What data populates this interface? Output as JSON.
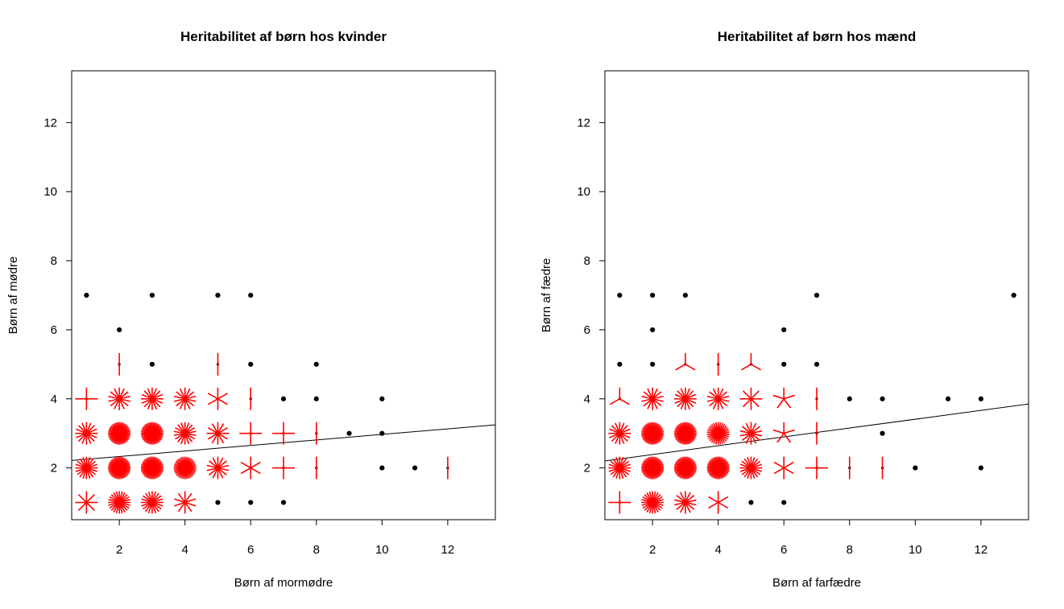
{
  "colors": {
    "point": "#000000",
    "sunflower": "#ff0000",
    "line": "#000000"
  },
  "chart_data": [
    {
      "type": "scatter",
      "subtype": "sunflower",
      "title": "Heritabilitet af børn hos kvinder",
      "xlabel": "Børn af  mormødre",
      "ylabel": "Børn af mødre",
      "xlim": [
        0.55,
        13.45
      ],
      "ylim": [
        0.5,
        13.5
      ],
      "xticks": [
        2,
        4,
        6,
        8,
        10,
        12
      ],
      "yticks": [
        2,
        4,
        6,
        8,
        10,
        12
      ],
      "xtick_labels": [
        "2",
        "4",
        "6",
        "8",
        "10",
        "12"
      ],
      "ytick_labels": [
        "2",
        "4",
        "6",
        "8",
        "10",
        "12"
      ],
      "regression_line": {
        "intercept": 2.17,
        "slope": 0.08
      },
      "points": [
        {
          "x": 1,
          "y": 7,
          "n": 1
        },
        {
          "x": 3,
          "y": 7,
          "n": 1
        },
        {
          "x": 5,
          "y": 7,
          "n": 1
        },
        {
          "x": 6,
          "y": 7,
          "n": 1
        },
        {
          "x": 2,
          "y": 6,
          "n": 1
        },
        {
          "x": 2,
          "y": 5,
          "n": 2
        },
        {
          "x": 3,
          "y": 5,
          "n": 1
        },
        {
          "x": 5,
          "y": 5,
          "n": 2
        },
        {
          "x": 6,
          "y": 5,
          "n": 1
        },
        {
          "x": 8,
          "y": 5,
          "n": 1
        },
        {
          "x": 1,
          "y": 4,
          "n": 4
        },
        {
          "x": 2,
          "y": 4,
          "n": 14
        },
        {
          "x": 3,
          "y": 4,
          "n": 16
        },
        {
          "x": 4,
          "y": 4,
          "n": 14
        },
        {
          "x": 5,
          "y": 4,
          "n": 6
        },
        {
          "x": 6,
          "y": 4,
          "n": 2
        },
        {
          "x": 7,
          "y": 4,
          "n": 1
        },
        {
          "x": 8,
          "y": 4,
          "n": 1
        },
        {
          "x": 10,
          "y": 4,
          "n": 1
        },
        {
          "x": 1,
          "y": 3,
          "n": 16
        },
        {
          "x": 2,
          "y": 3,
          "n": 40
        },
        {
          "x": 3,
          "y": 3,
          "n": 40
        },
        {
          "x": 4,
          "y": 3,
          "n": 18
        },
        {
          "x": 5,
          "y": 3,
          "n": 12
        },
        {
          "x": 6,
          "y": 3,
          "n": 4
        },
        {
          "x": 7,
          "y": 3,
          "n": 4
        },
        {
          "x": 8,
          "y": 3,
          "n": 2
        },
        {
          "x": 9,
          "y": 3,
          "n": 1
        },
        {
          "x": 10,
          "y": 3,
          "n": 1
        },
        {
          "x": 1,
          "y": 2,
          "n": 20
        },
        {
          "x": 2,
          "y": 2,
          "n": 40
        },
        {
          "x": 3,
          "y": 2,
          "n": 40
        },
        {
          "x": 4,
          "y": 2,
          "n": 36
        },
        {
          "x": 5,
          "y": 2,
          "n": 14
        },
        {
          "x": 6,
          "y": 2,
          "n": 6
        },
        {
          "x": 7,
          "y": 2,
          "n": 4
        },
        {
          "x": 8,
          "y": 2,
          "n": 2
        },
        {
          "x": 10,
          "y": 2,
          "n": 1
        },
        {
          "x": 11,
          "y": 2,
          "n": 1
        },
        {
          "x": 12,
          "y": 2,
          "n": 2
        },
        {
          "x": 1,
          "y": 1,
          "n": 8
        },
        {
          "x": 2,
          "y": 1,
          "n": 24
        },
        {
          "x": 3,
          "y": 1,
          "n": 20
        },
        {
          "x": 4,
          "y": 1,
          "n": 10
        },
        {
          "x": 5,
          "y": 1,
          "n": 1
        },
        {
          "x": 6,
          "y": 1,
          "n": 1
        },
        {
          "x": 7,
          "y": 1,
          "n": 1
        }
      ]
    },
    {
      "type": "scatter",
      "subtype": "sunflower",
      "title": "Heritabilitet af børn hos mænd",
      "xlabel": "Børn af  farfædre",
      "ylabel": "Børn af fædre",
      "xlim": [
        0.55,
        13.45
      ],
      "ylim": [
        0.5,
        13.5
      ],
      "xticks": [
        2,
        4,
        6,
        8,
        10,
        12
      ],
      "yticks": [
        2,
        4,
        6,
        8,
        10,
        12
      ],
      "xtick_labels": [
        "2",
        "4",
        "6",
        "8",
        "10",
        "12"
      ],
      "ytick_labels": [
        "2",
        "4",
        "6",
        "8",
        "10",
        "12"
      ],
      "regression_line": {
        "intercept": 2.13,
        "slope": 0.128
      },
      "points": [
        {
          "x": 1,
          "y": 7,
          "n": 1
        },
        {
          "x": 2,
          "y": 7,
          "n": 1
        },
        {
          "x": 3,
          "y": 7,
          "n": 1
        },
        {
          "x": 7,
          "y": 7,
          "n": 1
        },
        {
          "x": 13,
          "y": 7,
          "n": 1
        },
        {
          "x": 2,
          "y": 6,
          "n": 1
        },
        {
          "x": 6,
          "y": 6,
          "n": 1
        },
        {
          "x": 1,
          "y": 5,
          "n": 1
        },
        {
          "x": 2,
          "y": 5,
          "n": 1
        },
        {
          "x": 3,
          "y": 5,
          "n": 3
        },
        {
          "x": 4,
          "y": 5,
          "n": 2
        },
        {
          "x": 5,
          "y": 5,
          "n": 3
        },
        {
          "x": 6,
          "y": 5,
          "n": 1
        },
        {
          "x": 7,
          "y": 5,
          "n": 1
        },
        {
          "x": 1,
          "y": 4,
          "n": 3
        },
        {
          "x": 2,
          "y": 4,
          "n": 14
        },
        {
          "x": 3,
          "y": 4,
          "n": 16
        },
        {
          "x": 4,
          "y": 4,
          "n": 14
        },
        {
          "x": 5,
          "y": 4,
          "n": 8
        },
        {
          "x": 6,
          "y": 4,
          "n": 5
        },
        {
          "x": 7,
          "y": 4,
          "n": 2
        },
        {
          "x": 8,
          "y": 4,
          "n": 1
        },
        {
          "x": 9,
          "y": 4,
          "n": 1
        },
        {
          "x": 11,
          "y": 4,
          "n": 1
        },
        {
          "x": 12,
          "y": 4,
          "n": 1
        },
        {
          "x": 1,
          "y": 3,
          "n": 16
        },
        {
          "x": 2,
          "y": 3,
          "n": 40
        },
        {
          "x": 3,
          "y": 3,
          "n": 40
        },
        {
          "x": 4,
          "y": 3,
          "n": 30
        },
        {
          "x": 5,
          "y": 3,
          "n": 14
        },
        {
          "x": 6,
          "y": 3,
          "n": 5
        },
        {
          "x": 7,
          "y": 3,
          "n": 2
        },
        {
          "x": 9,
          "y": 3,
          "n": 1
        },
        {
          "x": 1,
          "y": 2,
          "n": 20
        },
        {
          "x": 2,
          "y": 2,
          "n": 40
        },
        {
          "x": 3,
          "y": 2,
          "n": 40
        },
        {
          "x": 4,
          "y": 2,
          "n": 40
        },
        {
          "x": 5,
          "y": 2,
          "n": 20
        },
        {
          "x": 6,
          "y": 2,
          "n": 6
        },
        {
          "x": 7,
          "y": 2,
          "n": 4
        },
        {
          "x": 8,
          "y": 2,
          "n": 2
        },
        {
          "x": 9,
          "y": 2,
          "n": 2
        },
        {
          "x": 10,
          "y": 2,
          "n": 1
        },
        {
          "x": 12,
          "y": 2,
          "n": 1
        },
        {
          "x": 1,
          "y": 1,
          "n": 4
        },
        {
          "x": 2,
          "y": 1,
          "n": 24
        },
        {
          "x": 3,
          "y": 1,
          "n": 14
        },
        {
          "x": 4,
          "y": 1,
          "n": 6
        },
        {
          "x": 5,
          "y": 1,
          "n": 1
        },
        {
          "x": 6,
          "y": 1,
          "n": 1
        }
      ]
    }
  ]
}
